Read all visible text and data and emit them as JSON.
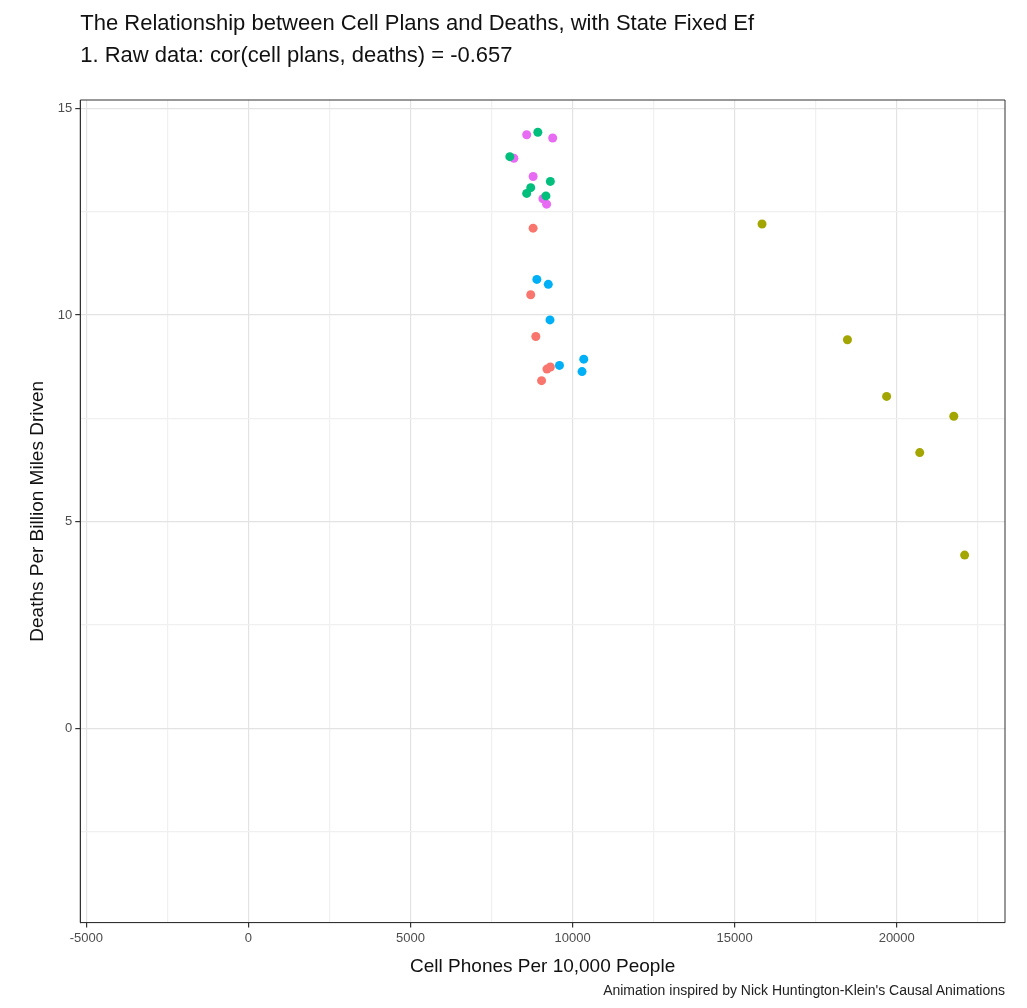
{
  "chart_data": {
    "type": "scatter",
    "title": "The Relationship between Cell Plans and Deaths, with State Fixed Ef",
    "subtitle": "1. Raw data: cor(cell plans, deaths) = -0.657",
    "xlabel": "Cell Phones Per 10,000 People",
    "ylabel": "Deaths Per Billion Miles Driven",
    "annotations": [
      "Animation inspired by Nick Huntington-Klein's Causal Animations"
    ],
    "series": [
      {
        "color": "#f8766d",
        "x": [
          8781,
          8708,
          8865,
          9208,
          9313,
          9042
        ],
        "values": [
          12.1,
          10.49,
          9.48,
          8.69,
          8.74,
          8.41
        ]
      },
      {
        "color": "#a3a500",
        "x": [
          15844,
          18479,
          19688,
          21760,
          20709,
          22094
        ],
        "values": [
          12.2,
          9.4,
          8.03,
          7.55,
          6.67,
          4.19
        ]
      },
      {
        "color": "#00bf7d",
        "x": [
          8927,
          8063,
          9313,
          8708,
          8583,
          9177
        ],
        "values": [
          14.42,
          13.83,
          13.23,
          13.08,
          12.94,
          12.88
        ]
      },
      {
        "color": "#00b0f6",
        "x": [
          8896,
          9250,
          9302,
          9594,
          10344,
          10291
        ],
        "values": [
          10.86,
          10.74,
          9.88,
          8.78,
          8.93,
          8.63
        ]
      },
      {
        "color": "#e76bf3",
        "x": [
          8583,
          9385,
          8188,
          8781,
          9198,
          9083
        ],
        "values": [
          14.36,
          14.28,
          13.79,
          13.35,
          12.68,
          12.81
        ]
      }
    ],
    "xlim": [
      -5190,
      23340
    ],
    "ylim": [
      -4.7,
      15.2
    ],
    "xticks": [
      -5000,
      {
        "value": -2500,
        "label": null
      },
      0,
      {
        "value": 2500,
        "label": null
      },
      5000,
      {
        "value": 7500,
        "label": null
      },
      10000,
      {
        "value": 12500,
        "label": null
      },
      15000,
      {
        "value": 17500,
        "label": null
      },
      20000,
      {
        "value": 22500,
        "label": null
      }
    ],
    "yticks": [
      {
        "value": -2.5,
        "label": null
      },
      0,
      {
        "value": 2.5,
        "label": null
      },
      5,
      {
        "value": 7.5,
        "label": null
      },
      10,
      {
        "value": 12.5,
        "label": null
      },
      15
    ],
    "grid": true,
    "marker": "circle",
    "legend": false
  }
}
